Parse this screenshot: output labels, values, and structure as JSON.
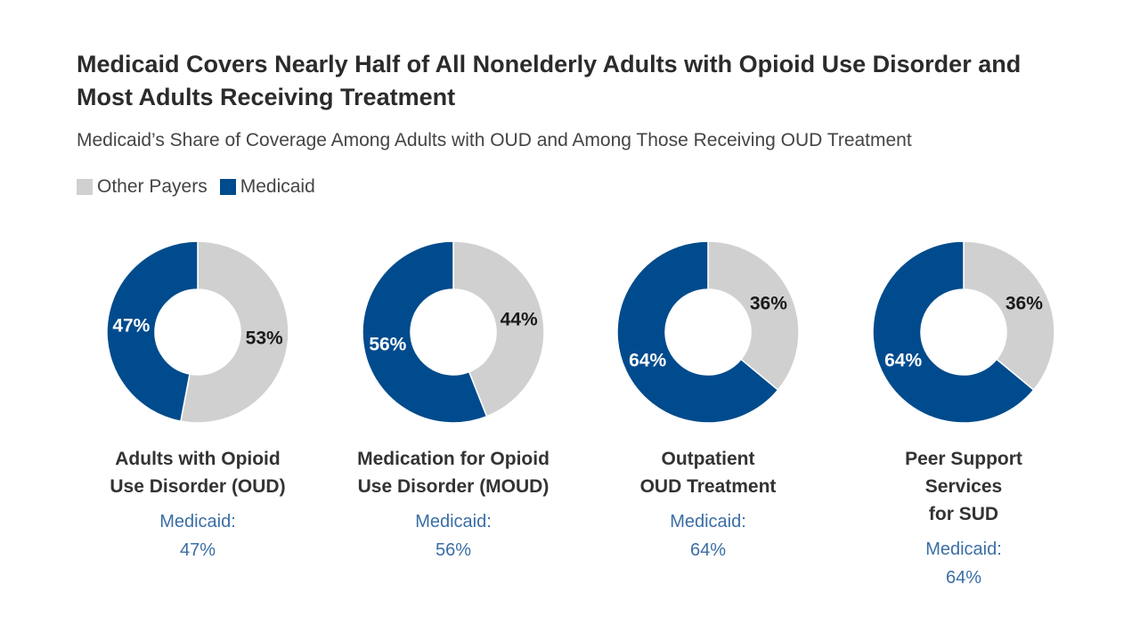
{
  "title": "Medicaid Covers Nearly Half of All Nonelderly Adults with Opioid Use Disorder and Most Adults Receiving Treatment",
  "subtitle": "Medicaid’s Share of Coverage Among Adults with OUD and Among Those Receiving OUD Treatment",
  "legend": {
    "other": "Other Payers",
    "medicaid": "Medicaid"
  },
  "colors": {
    "medicaid": "#004B8D",
    "other": "#D0D0D0",
    "medicaid_text": "#3a6ea5"
  },
  "chart_data": [
    {
      "type": "pie",
      "variant": "donut",
      "label_lines": [
        "Adults with Opioid",
        "Use Disorder (OUD)"
      ],
      "medicaid_line": "Medicaid:",
      "medicaid_value_text": "47%",
      "slices": [
        {
          "name": "Other Payers",
          "value": 53,
          "label": "53%"
        },
        {
          "name": "Medicaid",
          "value": 47,
          "label": "47%"
        }
      ]
    },
    {
      "type": "pie",
      "variant": "donut",
      "label_lines": [
        "Medication for Opioid",
        "Use Disorder (MOUD)"
      ],
      "medicaid_line": "Medicaid:",
      "medicaid_value_text": "56%",
      "slices": [
        {
          "name": "Other Payers",
          "value": 44,
          "label": "44%"
        },
        {
          "name": "Medicaid",
          "value": 56,
          "label": "56%"
        }
      ]
    },
    {
      "type": "pie",
      "variant": "donut",
      "label_lines": [
        "Outpatient",
        "OUD Treatment"
      ],
      "medicaid_line": "Medicaid:",
      "medicaid_value_text": "64%",
      "slices": [
        {
          "name": "Other Payers",
          "value": 36,
          "label": "36%"
        },
        {
          "name": "Medicaid",
          "value": 64,
          "label": "64%"
        }
      ]
    },
    {
      "type": "pie",
      "variant": "donut",
      "label_lines": [
        "Peer Support",
        "Services",
        "for SUD"
      ],
      "medicaid_line": "Medicaid:",
      "medicaid_value_text": "64%",
      "slices": [
        {
          "name": "Other Payers",
          "value": 36,
          "label": "36%"
        },
        {
          "name": "Medicaid",
          "value": 64,
          "label": "64%"
        }
      ]
    }
  ]
}
